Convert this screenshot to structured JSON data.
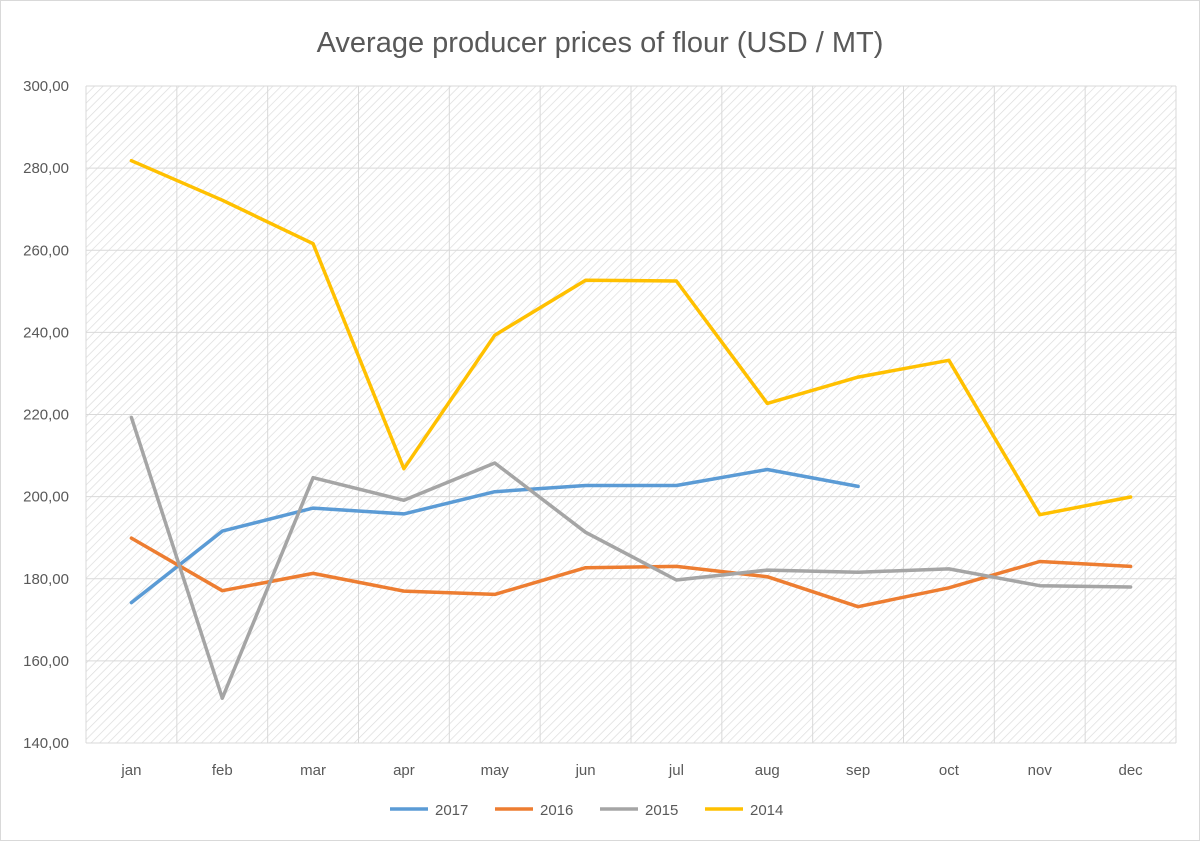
{
  "chart_data": {
    "type": "line",
    "title": "Average producer prices of flour (USD / MT)",
    "xlabel": "",
    "ylabel": "",
    "categories": [
      "jan",
      "feb",
      "mar",
      "apr",
      "may",
      "jun",
      "jul",
      "aug",
      "sep",
      "oct",
      "nov",
      "dec"
    ],
    "ylim": [
      140,
      300
    ],
    "yticks": [
      140,
      160,
      180,
      200,
      220,
      240,
      260,
      280,
      300
    ],
    "ytick_labels": [
      "140,00",
      "160,00",
      "180,00",
      "200,00",
      "220,00",
      "240,00",
      "260,00",
      "280,00",
      "300,00"
    ],
    "grid": true,
    "legend_position": "bottom",
    "series": [
      {
        "name": "2017",
        "color": "#5B9BD5",
        "values": [
          174.2,
          191.6,
          197.2,
          195.8,
          201.2,
          202.7,
          202.7,
          206.6,
          202.5,
          null,
          null,
          null
        ]
      },
      {
        "name": "2016",
        "color": "#ED7D31",
        "values": [
          189.9,
          177.1,
          181.3,
          177.0,
          176.2,
          182.7,
          183.0,
          180.5,
          173.2,
          177.8,
          184.2,
          183.0
        ]
      },
      {
        "name": "2015",
        "color": "#A5A5A5",
        "values": [
          219.3,
          150.9,
          204.6,
          199.1,
          208.2,
          191.3,
          179.7,
          182.1,
          181.6,
          182.4,
          178.3,
          178.0
        ]
      },
      {
        "name": "2014",
        "color": "#FFC000",
        "values": [
          281.8,
          272.2,
          261.6,
          206.8,
          239.3,
          252.7,
          252.5,
          222.7,
          229.1,
          233.2,
          195.6,
          199.9
        ]
      }
    ]
  }
}
